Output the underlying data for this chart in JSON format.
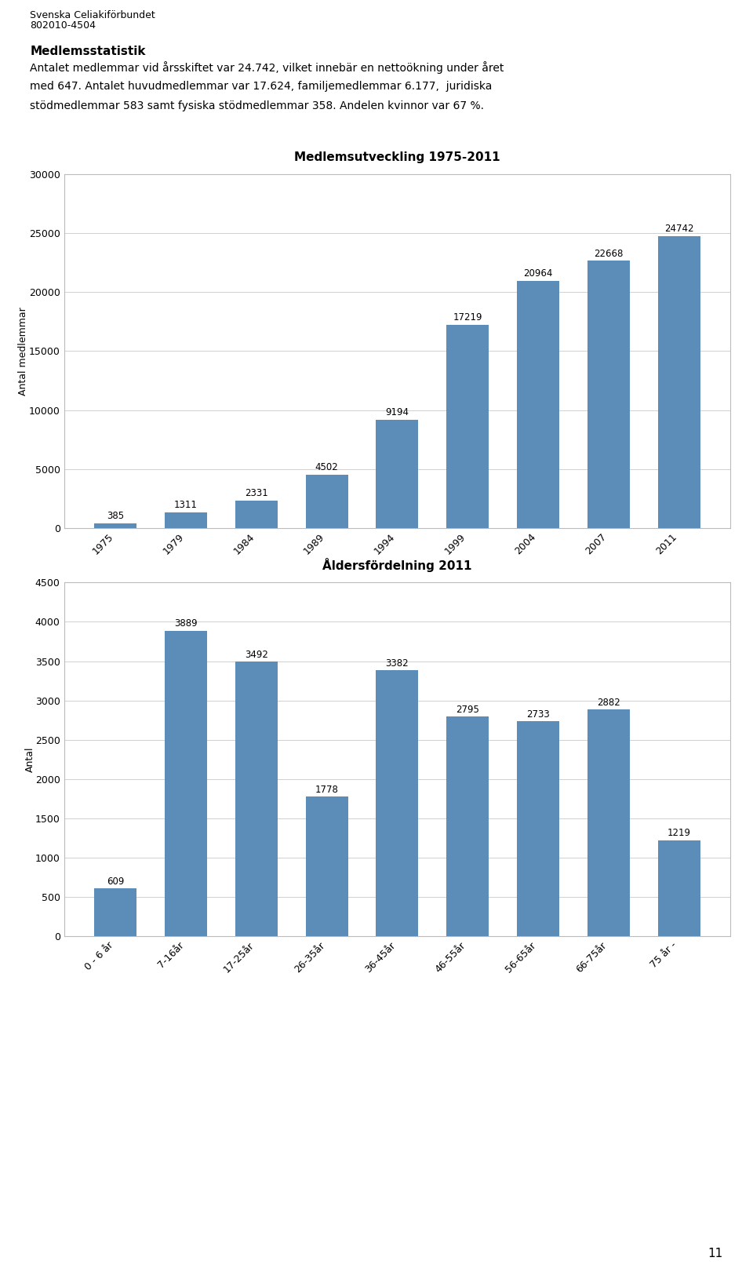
{
  "header_line1": "Svenska Celiakiförbundet",
  "header_line2": "802010-4504",
  "section_title": "Medlemsstatistik",
  "section_text_line1": "Antalet medlemmar vid årsskiftet var 24.742, vilket innebär en nettoökning under året",
  "section_text_line2": "med 647. Antalet huvudmedlemmar var 17.624, familjemedlemmar 6.177,  juridiska",
  "section_text_line3": "stödmedlemmar 583 samt fysiska stödmedlemmar 358. Andelen kvinnor var 67 %.",
  "page_number": "11",
  "chart1": {
    "title": "Medlemsutveckling 1975-2011",
    "ylabel": "Antal medlemmar",
    "categories": [
      "1975",
      "1979",
      "1984",
      "1989",
      "1994",
      "1999",
      "2004",
      "2007",
      "2011"
    ],
    "values": [
      385,
      1311,
      2331,
      4502,
      9194,
      17219,
      20964,
      22668,
      24742
    ],
    "bar_color": "#5b8db8",
    "ylim": [
      0,
      30000
    ],
    "yticks": [
      0,
      5000,
      10000,
      15000,
      20000,
      25000,
      30000
    ]
  },
  "chart2": {
    "title": "Åldersfördelning 2011",
    "ylabel": "Antal",
    "categories": [
      "0 - 6 år",
      "7-16år",
      "17-25år",
      "26-35år",
      "36-45år",
      "46-55år",
      "56-65år",
      "66-75år",
      "75 år -"
    ],
    "values": [
      609,
      3889,
      3492,
      1778,
      3382,
      2795,
      2733,
      2882,
      1219
    ],
    "bar_color": "#5b8db8",
    "ylim": [
      0,
      4500
    ],
    "yticks": [
      0,
      500,
      1000,
      1500,
      2000,
      2500,
      3000,
      3500,
      4000,
      4500
    ]
  }
}
